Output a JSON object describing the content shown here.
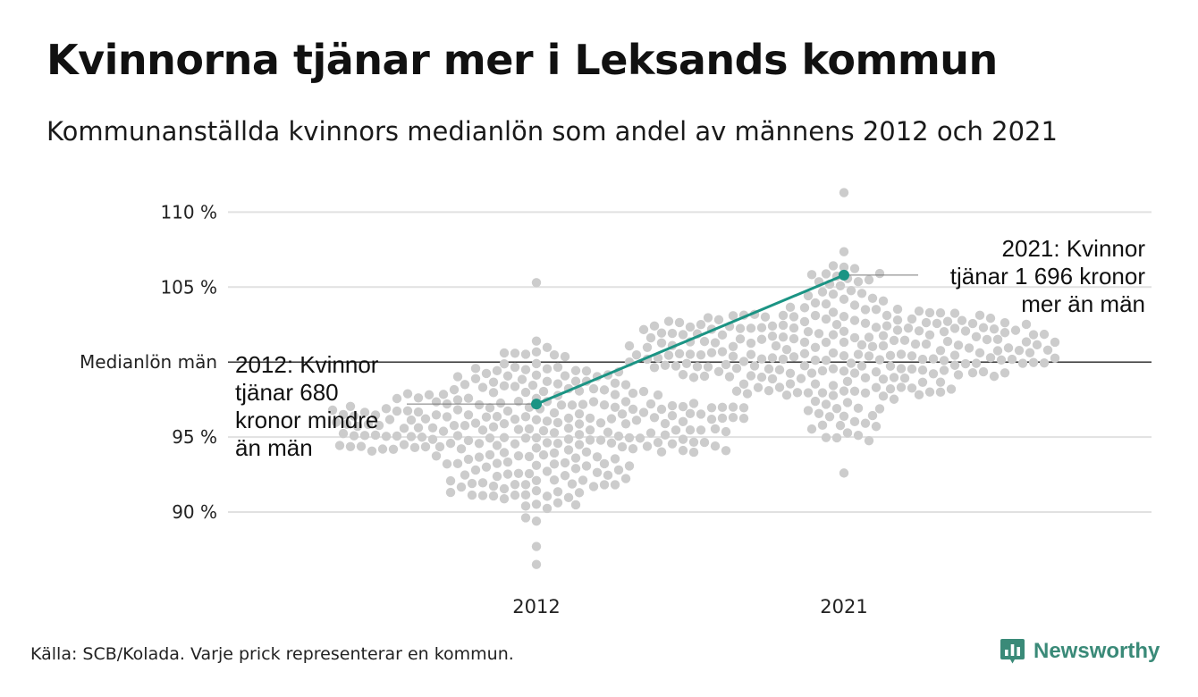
{
  "title": "Kvinnorna tjänar mer i Leksands kommun",
  "subtitle": "Kommunanställda kvinnors medianlön som andel av männens 2012 och 2021",
  "source": "Källa: SCB/Kolada. Varje prick representerar en kommun.",
  "brand": "Newsworthy",
  "colors": {
    "highlight": "#1b9484",
    "dots": "#cccccc",
    "grid": "#e1e1e1",
    "reference": "#222222"
  },
  "chart_data": {
    "type": "scatter",
    "categories": [
      "2012",
      "2021"
    ],
    "ylim": [
      86,
      111.5
    ],
    "yticks": [
      {
        "value": 90,
        "label": "90 %"
      },
      {
        "value": 95,
        "label": "95 %"
      },
      {
        "value": 105,
        "label": "105 %"
      },
      {
        "value": 110,
        "label": "110 %"
      }
    ],
    "reference_line": {
      "value": 100,
      "label": "Medianlön män"
    },
    "highlight": {
      "values": [
        97.2,
        105.8
      ]
    },
    "distribution": [
      {
        "category": "2012",
        "min": 86.5,
        "max": 105.3,
        "median": 95.3
      },
      {
        "category": "2021",
        "min": 92.6,
        "max": 111.3,
        "median": 100.8
      }
    ],
    "annotations": {
      "left": [
        "2012: Kvinnor",
        "tjänar 680",
        "kronor mindre",
        "än män"
      ],
      "right": [
        "2021: Kvinnor",
        "tjänar 1 696 kronor",
        "mer än män"
      ]
    }
  }
}
